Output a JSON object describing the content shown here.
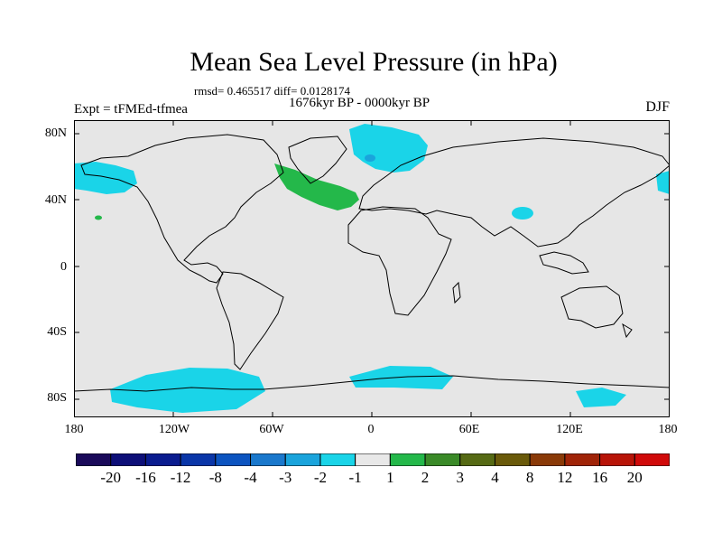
{
  "title": "Mean Sea Level Pressure (in hPa)",
  "stats_text": "rmsd= 0.465517  diff= 0.0128174",
  "period_text": "1676kyr BP - 0000kyr BP",
  "expt_text": "Expt = tFMEd-tfmea",
  "season_text": "DJF",
  "lat_labels": [
    "80N",
    "40N",
    "0",
    "40S",
    "80S"
  ],
  "lon_labels": [
    "180",
    "120W",
    "60W",
    "0",
    "60E",
    "120E",
    "180"
  ],
  "colorbar": {
    "labels": [
      "-20",
      "-16",
      "-12",
      "-8",
      "-4",
      "-3",
      "-2",
      "-1",
      "1",
      "2",
      "3",
      "4",
      "8",
      "12",
      "16",
      "20"
    ],
    "colors": [
      "#1a0a5a",
      "#0d0f78",
      "#0a1c8f",
      "#0a36a8",
      "#0c54c0",
      "#1a78cc",
      "#1aa4dc",
      "#1ad4e8",
      "#e8e8e8",
      "#24b84a",
      "#3a8a28",
      "#566a14",
      "#6a5a0a",
      "#8a3a08",
      "#a02408",
      "#b81408",
      "#d00a0a"
    ]
  },
  "chart_data": {
    "type": "heatmap",
    "variable": "Mean Sea Level Pressure difference",
    "units": "hPa",
    "lat_range": [
      -90,
      90
    ],
    "lon_range": [
      -180,
      180
    ],
    "levels": [
      -20,
      -16,
      -12,
      -8,
      -4,
      -3,
      -2,
      -1,
      1,
      2,
      3,
      4,
      8,
      12,
      16,
      20
    ],
    "rmsd": 0.465517,
    "diff": 0.0128174,
    "regions": [
      {
        "name": "north-atlantic-positive",
        "category": "1 to 2",
        "lon": [
          -60,
          -10
        ],
        "lat": [
          35,
          60
        ]
      },
      {
        "name": "arctic-scandinavia-negative",
        "category": "-2 to -1",
        "lon": [
          -10,
          40
        ],
        "lat": [
          55,
          85
        ]
      },
      {
        "name": "north-pacific-negative",
        "category": "-2 to -1",
        "lon": [
          -180,
          -140
        ],
        "lat": [
          45,
          60
        ]
      },
      {
        "name": "south-pacific-southern-ocean-negative",
        "category": "-2 to -1",
        "lon": [
          -170,
          -60
        ],
        "lat": [
          -85,
          -60
        ]
      },
      {
        "name": "south-atlantic-southern-ocean-negative",
        "category": "-2 to -1",
        "lon": [
          -10,
          50
        ],
        "lat": [
          -75,
          -60
        ]
      },
      {
        "name": "central-asia-negative",
        "category": "-2 to -1",
        "lon": [
          90,
          100
        ],
        "lat": [
          32,
          40
        ]
      }
    ]
  }
}
